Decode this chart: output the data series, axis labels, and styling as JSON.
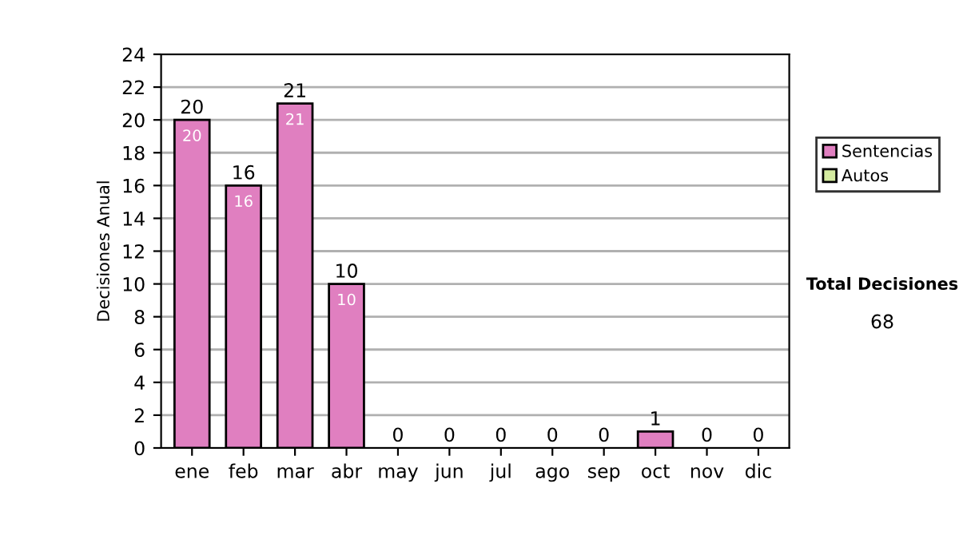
{
  "chart_data": {
    "type": "bar",
    "ylabel": "Decisiones Anual",
    "categories": [
      "ene",
      "feb",
      "mar",
      "abr",
      "may",
      "jun",
      "jul",
      "ago",
      "sep",
      "oct",
      "nov",
      "dic"
    ],
    "stacked": true,
    "series": [
      {
        "name": "Sentencias",
        "color": "#e07fc0",
        "values": [
          20,
          16,
          21,
          10,
          0,
          0,
          0,
          0,
          0,
          1,
          0,
          0
        ],
        "value_labels": [
          "20",
          "16",
          "21",
          "10",
          null,
          null,
          null,
          null,
          null,
          null,
          null,
          null
        ]
      },
      {
        "name": "Autos",
        "color": "#d4eba0",
        "values": [
          0,
          0,
          0,
          0,
          0,
          0,
          0,
          0,
          0,
          0,
          0,
          0
        ]
      }
    ],
    "totals": [
      "20",
      "16",
      "21",
      "10",
      "0",
      "0",
      "0",
      "0",
      "0",
      "1",
      "0",
      "0"
    ],
    "ylim": [
      0,
      24
    ],
    "yticks": [
      0,
      2,
      4,
      6,
      8,
      10,
      12,
      14,
      16,
      18,
      20,
      22,
      24
    ],
    "grid": "y",
    "legend": "right",
    "annotations": [
      "Total Decisiones",
      "68"
    ]
  }
}
